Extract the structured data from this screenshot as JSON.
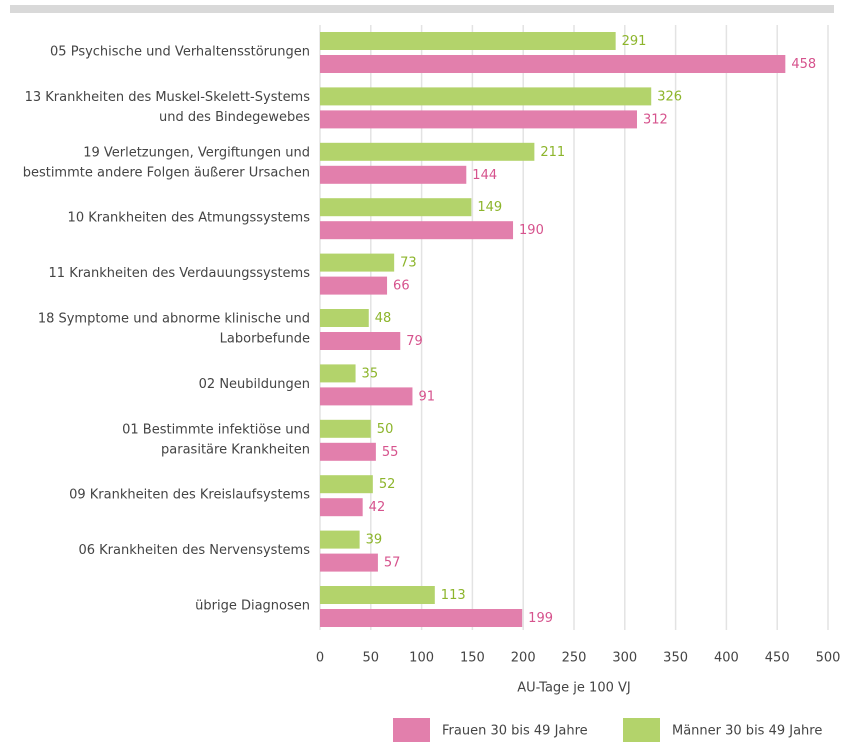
{
  "chart_data": {
    "type": "hbar",
    "categories": [
      [
        "05 Psychische und Verhaltensstörungen"
      ],
      [
        "13 Krankheiten des Muskel-Skelett-Systems",
        "und des Bindegewebes"
      ],
      [
        "19 Verletzungen, Vergiftungen und",
        "bestimmte andere Folgen äußerer Ursachen"
      ],
      [
        "10 Krankheiten des Atmungssystems"
      ],
      [
        "11 Krankheiten des Verdauungssystems"
      ],
      [
        "18 Symptome und abnorme klinische und",
        "Laborbefunde"
      ],
      [
        "02 Neubildungen"
      ],
      [
        "01 Bestimmte infektiöse und",
        "parasitäre Krankheiten"
      ],
      [
        "09 Krankheiten des Kreislaufsystems"
      ],
      [
        "06 Krankheiten des Nervensystems"
      ],
      [
        "übrige Diagnosen"
      ]
    ],
    "series": [
      {
        "name": "Frauen 30 bis 49 Jahre",
        "color": "#e27fac",
        "label_color": "#d6538d",
        "values": [
          458,
          312,
          144,
          190,
          66,
          79,
          91,
          55,
          42,
          57,
          199
        ]
      },
      {
        "name": "Männer 30 bis 49 Jahre",
        "color": "#b3d36b",
        "label_color": "#8db52c",
        "values": [
          291,
          326,
          211,
          149,
          73,
          48,
          35,
          50,
          52,
          39,
          113
        ]
      }
    ],
    "xlabel": "AU-Tage je 100 VJ",
    "xlim": [
      0,
      500
    ],
    "xticks": [
      0,
      50,
      100,
      150,
      200,
      250,
      300,
      350,
      400,
      450,
      500
    ],
    "grid": true,
    "legend": "bottom-right"
  }
}
